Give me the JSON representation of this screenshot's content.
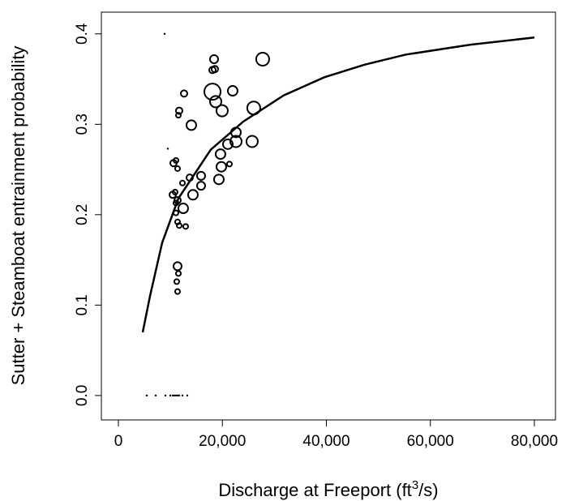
{
  "chart_data": {
    "type": "scatter",
    "xlabel": {
      "text": "Discharge at Freeport  (ft",
      "superscript": "3",
      "suffix": "/s)"
    },
    "ylabel": "Sutter + Steamboat entrainment probability",
    "xlim": [
      -3275,
      84055
    ],
    "ylim": [
      -0.027,
      0.424
    ],
    "xticks": [
      0,
      {
        "value": 20000,
        "label": "20,000"
      },
      {
        "value": 40000,
        "label": "40,000"
      },
      {
        "value": 60000,
        "label": "60,000"
      },
      {
        "value": 80000,
        "label": "80,000"
      }
    ],
    "yticks": [
      {
        "value": 0,
        "label": "0.0"
      },
      0.1,
      0.2,
      0.3,
      0.4
    ],
    "color": "#000000",
    "points": {
      "x": [
        8890,
        9510,
        18400,
        18090,
        18550,
        27750,
        18090,
        21980,
        18710,
        19950,
        26030,
        12630,
        11690,
        11540,
        14030,
        22610,
        22610,
        21050,
        25720,
        19640,
        19800,
        21360,
        11070,
        11380,
        10600,
        15900,
        13720,
        15900,
        19330,
        12320,
        14340,
        10450,
        10910,
        11380,
        11070,
        12470,
        11070,
        11380,
        11690,
        12940,
        11380,
        11540,
        11220,
        11380,
        5460,
        7170,
        9040,
        9980,
        10450,
        10760,
        11070,
        11380,
        11690,
        12320,
        13250
      ],
      "y": [
        0.4,
        0.273,
        0.372,
        0.36,
        0.361,
        0.372,
        0.336,
        0.337,
        0.325,
        0.315,
        0.318,
        0.334,
        0.315,
        0.31,
        0.299,
        0.291,
        0.281,
        0.278,
        0.281,
        0.267,
        0.253,
        0.256,
        0.26,
        0.251,
        0.257,
        0.243,
        0.241,
        0.232,
        0.239,
        0.235,
        0.222,
        0.222,
        0.225,
        0.216,
        0.213,
        0.207,
        0.202,
        0.192,
        0.188,
        0.187,
        0.143,
        0.135,
        0.126,
        0.115,
        0,
        0,
        0,
        0,
        0,
        0,
        0,
        0,
        0,
        0,
        0
      ],
      "size": [
        1,
        1,
        5,
        4,
        4,
        8,
        10,
        6,
        7,
        7,
        8,
        4,
        4,
        3,
        6,
        6,
        7,
        6,
        7,
        6,
        6,
        3,
        3,
        3,
        4,
        5,
        4,
        5,
        6,
        3,
        6,
        4,
        3,
        4,
        3,
        6,
        3,
        3,
        3,
        3,
        5,
        3,
        3,
        3,
        1,
        1,
        1,
        1,
        1,
        1,
        1,
        1,
        1,
        1,
        1
      ]
    },
    "curve": {
      "x": [
        4678,
        6080,
        8420,
        11540,
        17776,
        24016,
        31810,
        39610,
        47400,
        55200,
        67700,
        80000
      ],
      "y": [
        0.07,
        0.11,
        0.169,
        0.218,
        0.272,
        0.303,
        0.332,
        0.352,
        0.366,
        0.377,
        0.388,
        0.396
      ]
    }
  }
}
